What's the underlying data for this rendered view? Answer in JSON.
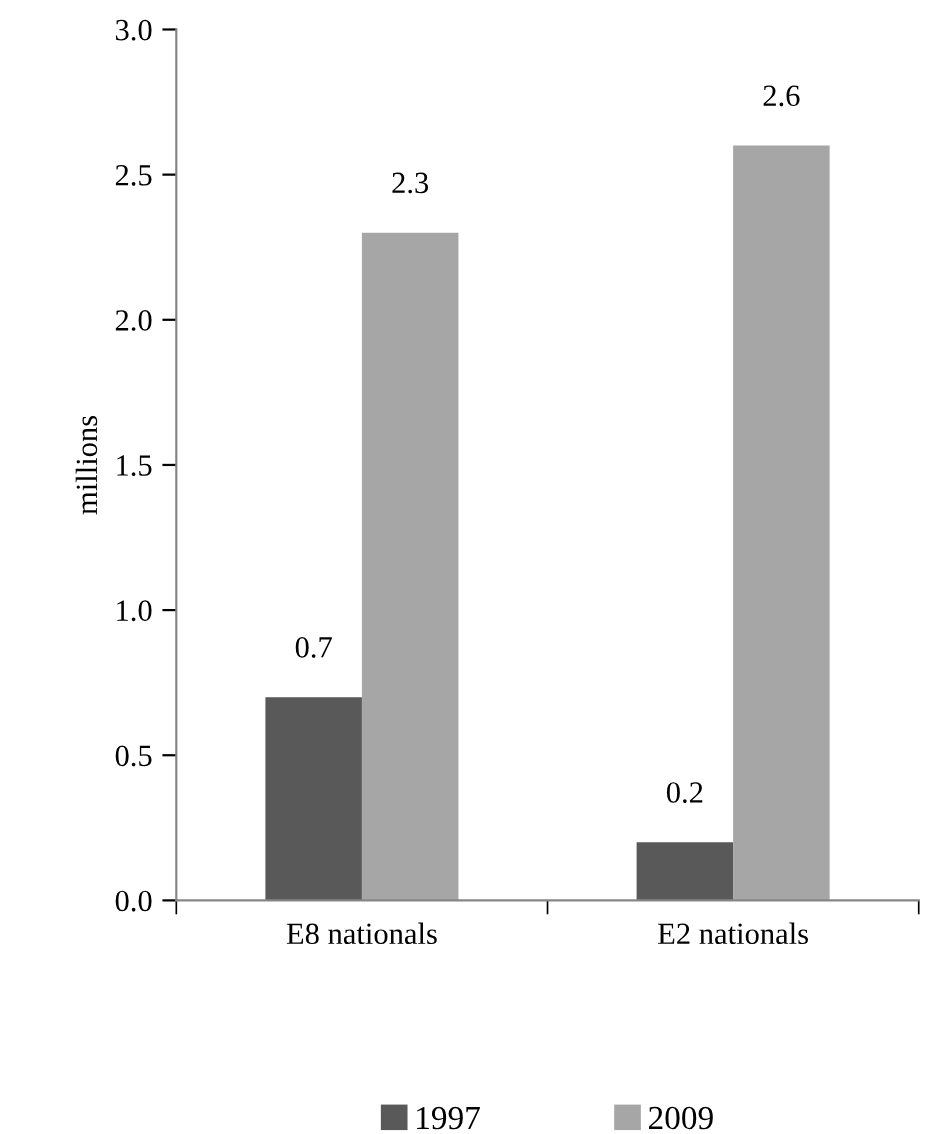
{
  "chart_data": {
    "type": "bar",
    "ylabel": "millions",
    "categories": [
      "E8 nationals",
      "E2 nationals"
    ],
    "series": [
      {
        "name": "1997",
        "color": "#595959",
        "values": [
          0.7,
          0.2
        ]
      },
      {
        "name": "2009",
        "color": "#a6a6a6",
        "values": [
          2.3,
          2.6
        ]
      }
    ],
    "ylim": [
      0,
      3.0
    ],
    "yticks": [
      {
        "value": 0,
        "label": "0.0"
      },
      0.5,
      {
        "value": 1,
        "label": "1.0"
      },
      1.5,
      {
        "value": 2,
        "label": "2.0"
      },
      2.5,
      {
        "value": 3,
        "label": "3.0"
      }
    ],
    "data_labels": true,
    "grid": false,
    "legend": "bottom"
  }
}
